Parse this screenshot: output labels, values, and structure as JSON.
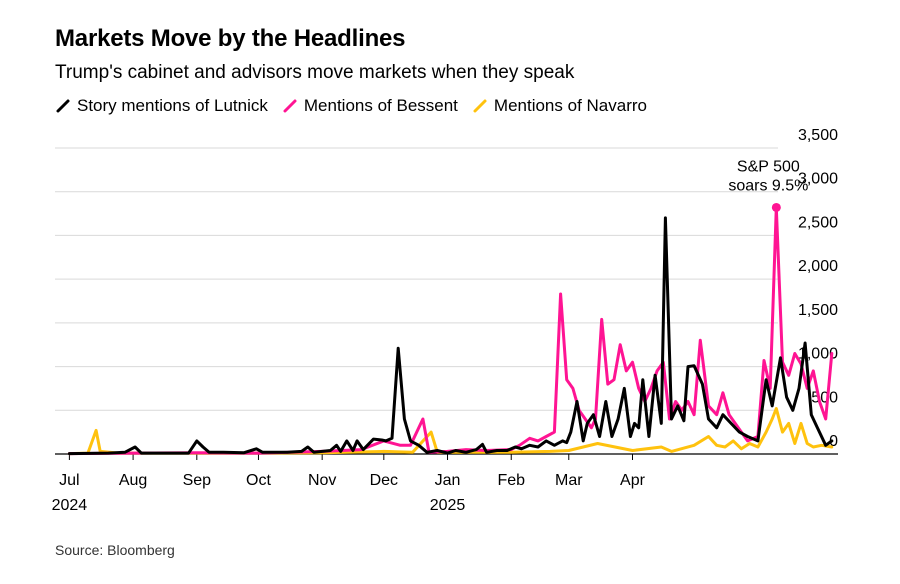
{
  "title": "Markets Move by the Headlines",
  "subtitle": "Trump's cabinet and advisors move markets when they speak",
  "source": "Source: Bloomberg",
  "chart_data": {
    "type": "line",
    "title": "Markets Move by the Headlines",
    "subtitle": "Trump's cabinet and advisors move markets when they speak",
    "xlabel": "",
    "ylabel": "",
    "ylim": [
      0,
      3500
    ],
    "yticks": [
      0,
      500,
      1000,
      1500,
      2000,
      2500,
      3000,
      3500
    ],
    "ytick_labels": [
      "0",
      "500",
      "1,000",
      "1,500",
      "2,000",
      "2,500",
      "3,000",
      "3,500"
    ],
    "y_axis_side": "right",
    "grid": true,
    "legend_placement": "top-left",
    "x_ticks": [
      {
        "date": "2024-07-01",
        "label": "Jul",
        "sublabel": "2024"
      },
      {
        "date": "2024-08-01",
        "label": "Aug",
        "sublabel": ""
      },
      {
        "date": "2024-09-01",
        "label": "Sep",
        "sublabel": ""
      },
      {
        "date": "2024-10-01",
        "label": "Oct",
        "sublabel": ""
      },
      {
        "date": "2024-11-01",
        "label": "Nov",
        "sublabel": ""
      },
      {
        "date": "2024-12-01",
        "label": "Dec",
        "sublabel": ""
      },
      {
        "date": "2025-01-01",
        "label": "Jan",
        "sublabel": "2025"
      },
      {
        "date": "2025-02-01",
        "label": "Feb",
        "sublabel": ""
      },
      {
        "date": "2025-03-01",
        "label": "Mar",
        "sublabel": ""
      },
      {
        "date": "2025-04-01",
        "label": "Apr",
        "sublabel": ""
      }
    ],
    "series": [
      {
        "name": "Story mentions of Lutnick",
        "color": "#000000",
        "points": [
          [
            "2024-07-01",
            5
          ],
          [
            "2024-07-20",
            10
          ],
          [
            "2024-07-28",
            20
          ],
          [
            "2024-08-02",
            80
          ],
          [
            "2024-08-05",
            10
          ],
          [
            "2024-08-20",
            10
          ],
          [
            "2024-08-28",
            10
          ],
          [
            "2024-09-01",
            150
          ],
          [
            "2024-09-04",
            80
          ],
          [
            "2024-09-07",
            20
          ],
          [
            "2024-09-14",
            20
          ],
          [
            "2024-09-24",
            15
          ],
          [
            "2024-09-30",
            60
          ],
          [
            "2024-10-03",
            20
          ],
          [
            "2024-10-15",
            20
          ],
          [
            "2024-10-22",
            30
          ],
          [
            "2024-10-25",
            80
          ],
          [
            "2024-10-28",
            20
          ],
          [
            "2024-11-05",
            40
          ],
          [
            "2024-11-08",
            100
          ],
          [
            "2024-11-10",
            30
          ],
          [
            "2024-11-13",
            150
          ],
          [
            "2024-11-16",
            40
          ],
          [
            "2024-11-18",
            150
          ],
          [
            "2024-11-21",
            50
          ],
          [
            "2024-11-26",
            170
          ],
          [
            "2024-11-30",
            160
          ],
          [
            "2024-12-02",
            150
          ],
          [
            "2024-12-05",
            180
          ],
          [
            "2024-12-08",
            1210
          ],
          [
            "2024-12-11",
            400
          ],
          [
            "2024-12-14",
            150
          ],
          [
            "2024-12-18",
            100
          ],
          [
            "2024-12-22",
            20
          ],
          [
            "2024-12-27",
            40
          ],
          [
            "2025-01-01",
            10
          ],
          [
            "2025-01-05",
            40
          ],
          [
            "2025-01-10",
            20
          ],
          [
            "2025-01-15",
            50
          ],
          [
            "2025-01-18",
            110
          ],
          [
            "2025-01-20",
            20
          ],
          [
            "2025-01-25",
            40
          ],
          [
            "2025-01-30",
            40
          ],
          [
            "2025-02-03",
            80
          ],
          [
            "2025-02-06",
            60
          ],
          [
            "2025-02-10",
            100
          ],
          [
            "2025-02-14",
            80
          ],
          [
            "2025-02-18",
            150
          ],
          [
            "2025-02-22",
            100
          ],
          [
            "2025-02-26",
            150
          ],
          [
            "2025-02-28",
            130
          ],
          [
            "2025-03-02",
            250
          ],
          [
            "2025-03-05",
            600
          ],
          [
            "2025-03-08",
            150
          ],
          [
            "2025-03-10",
            350
          ],
          [
            "2025-03-13",
            450
          ],
          [
            "2025-03-16",
            200
          ],
          [
            "2025-03-19",
            600
          ],
          [
            "2025-03-22",
            200
          ],
          [
            "2025-03-25",
            400
          ],
          [
            "2025-03-28",
            750
          ],
          [
            "2025-03-31",
            200
          ],
          [
            "2025-04-02",
            350
          ],
          [
            "2025-04-04",
            300
          ],
          [
            "2025-04-06",
            850
          ],
          [
            "2025-04-09",
            200
          ],
          [
            "2025-04-12",
            900
          ],
          [
            "2025-04-15",
            350
          ],
          [
            "2025-04-17",
            2700
          ],
          [
            "2025-04-20",
            400
          ],
          [
            "2025-04-23",
            550
          ],
          [
            "2025-04-26",
            380
          ],
          [
            "2025-04-28",
            1000
          ],
          [
            "2025-05-01",
            1010
          ],
          [
            "2025-05-05",
            800
          ],
          [
            "2025-05-08",
            400
          ],
          [
            "2025-05-12",
            300
          ],
          [
            "2025-05-15",
            450
          ],
          [
            "2025-05-19",
            350
          ],
          [
            "2025-05-23",
            250
          ],
          [
            "2025-05-27",
            200
          ],
          [
            "2025-06-01",
            150
          ],
          [
            "2025-06-05",
            850
          ],
          [
            "2025-06-08",
            550
          ],
          [
            "2025-06-12",
            1100
          ],
          [
            "2025-06-15",
            650
          ],
          [
            "2025-06-18",
            500
          ],
          [
            "2025-06-21",
            750
          ],
          [
            "2025-06-24",
            1270
          ],
          [
            "2025-06-27",
            450
          ],
          [
            "2025-06-30",
            300
          ],
          [
            "2025-07-04",
            100
          ],
          [
            "2025-07-07",
            150
          ]
        ]
      },
      {
        "name": "Mentions of Bessent",
        "color": "#ff1493",
        "points": [
          [
            "2024-07-01",
            5
          ],
          [
            "2024-08-01",
            10
          ],
          [
            "2024-09-01",
            15
          ],
          [
            "2024-10-01",
            10
          ],
          [
            "2024-11-01",
            30
          ],
          [
            "2024-11-20",
            50
          ],
          [
            "2024-12-01",
            150
          ],
          [
            "2024-12-09",
            100
          ],
          [
            "2024-12-14",
            100
          ],
          [
            "2024-12-20",
            400
          ],
          [
            "2024-12-23",
            20
          ],
          [
            "2025-01-01",
            30
          ],
          [
            "2025-01-10",
            50
          ],
          [
            "2025-01-20",
            40
          ],
          [
            "2025-02-01",
            50
          ],
          [
            "2025-02-05",
            100
          ],
          [
            "2025-02-10",
            180
          ],
          [
            "2025-02-14",
            150
          ],
          [
            "2025-02-18",
            200
          ],
          [
            "2025-02-22",
            250
          ],
          [
            "2025-02-25",
            1830
          ],
          [
            "2025-02-28",
            850
          ],
          [
            "2025-03-03",
            750
          ],
          [
            "2025-03-06",
            500
          ],
          [
            "2025-03-09",
            400
          ],
          [
            "2025-03-12",
            300
          ],
          [
            "2025-03-14",
            400
          ],
          [
            "2025-03-17",
            1540
          ],
          [
            "2025-03-20",
            800
          ],
          [
            "2025-03-23",
            850
          ],
          [
            "2025-03-26",
            1250
          ],
          [
            "2025-03-29",
            950
          ],
          [
            "2025-04-01",
            1050
          ],
          [
            "2025-04-04",
            750
          ],
          [
            "2025-04-07",
            600
          ],
          [
            "2025-04-10",
            750
          ],
          [
            "2025-04-13",
            950
          ],
          [
            "2025-04-16",
            1050
          ],
          [
            "2025-04-19",
            400
          ],
          [
            "2025-04-22",
            600
          ],
          [
            "2025-04-25",
            500
          ],
          [
            "2025-04-28",
            600
          ],
          [
            "2025-05-01",
            450
          ],
          [
            "2025-05-04",
            1300
          ],
          [
            "2025-05-08",
            550
          ],
          [
            "2025-05-12",
            450
          ],
          [
            "2025-05-15",
            700
          ],
          [
            "2025-05-18",
            450
          ],
          [
            "2025-05-21",
            350
          ],
          [
            "2025-05-24",
            250
          ],
          [
            "2025-05-27",
            150
          ],
          [
            "2025-06-01",
            200
          ],
          [
            "2025-06-04",
            1070
          ],
          [
            "2025-06-07",
            750
          ],
          [
            "2025-06-10",
            2820
          ],
          [
            "2025-06-13",
            1050
          ],
          [
            "2025-06-16",
            900
          ],
          [
            "2025-06-19",
            1150
          ],
          [
            "2025-06-22",
            1030
          ],
          [
            "2025-06-25",
            750
          ],
          [
            "2025-06-28",
            950
          ],
          [
            "2025-07-01",
            600
          ],
          [
            "2025-07-04",
            400
          ],
          [
            "2025-07-07",
            1150
          ]
        ],
        "highlight": {
          "date": "2025-06-10",
          "value": 2820
        }
      },
      {
        "name": "Mentions of Navarro",
        "color": "#ffc20e",
        "points": [
          [
            "2024-07-01",
            5
          ],
          [
            "2024-07-10",
            10
          ],
          [
            "2024-07-14",
            270
          ],
          [
            "2024-07-16",
            30
          ],
          [
            "2024-07-25",
            10
          ],
          [
            "2024-08-10",
            10
          ],
          [
            "2024-09-01",
            10
          ],
          [
            "2024-10-01",
            10
          ],
          [
            "2024-11-01",
            15
          ],
          [
            "2024-12-01",
            30
          ],
          [
            "2024-12-15",
            20
          ],
          [
            "2024-12-24",
            250
          ],
          [
            "2024-12-27",
            20
          ],
          [
            "2025-01-10",
            20
          ],
          [
            "2025-02-01",
            20
          ],
          [
            "2025-02-20",
            30
          ],
          [
            "2025-03-01",
            40
          ],
          [
            "2025-03-15",
            120
          ],
          [
            "2025-04-01",
            40
          ],
          [
            "2025-04-15",
            80
          ],
          [
            "2025-04-20",
            30
          ],
          [
            "2025-05-01",
            100
          ],
          [
            "2025-05-08",
            200
          ],
          [
            "2025-05-12",
            100
          ],
          [
            "2025-05-16",
            80
          ],
          [
            "2025-05-20",
            150
          ],
          [
            "2025-05-24",
            60
          ],
          [
            "2025-05-28",
            120
          ],
          [
            "2025-06-01",
            80
          ],
          [
            "2025-06-05",
            250
          ],
          [
            "2025-06-08",
            400
          ],
          [
            "2025-06-10",
            520
          ],
          [
            "2025-06-13",
            250
          ],
          [
            "2025-06-16",
            350
          ],
          [
            "2025-06-19",
            120
          ],
          [
            "2025-06-22",
            350
          ],
          [
            "2025-06-25",
            120
          ],
          [
            "2025-06-28",
            80
          ],
          [
            "2025-07-02",
            100
          ],
          [
            "2025-07-07",
            80
          ]
        ]
      }
    ],
    "annotations": [
      {
        "text_lines": [
          "S&P 500",
          "soars 9.5%"
        ],
        "date": "2025-06-10",
        "value": 2820
      }
    ],
    "x_domain": [
      "2024-06-24",
      "2025-07-10"
    ]
  }
}
